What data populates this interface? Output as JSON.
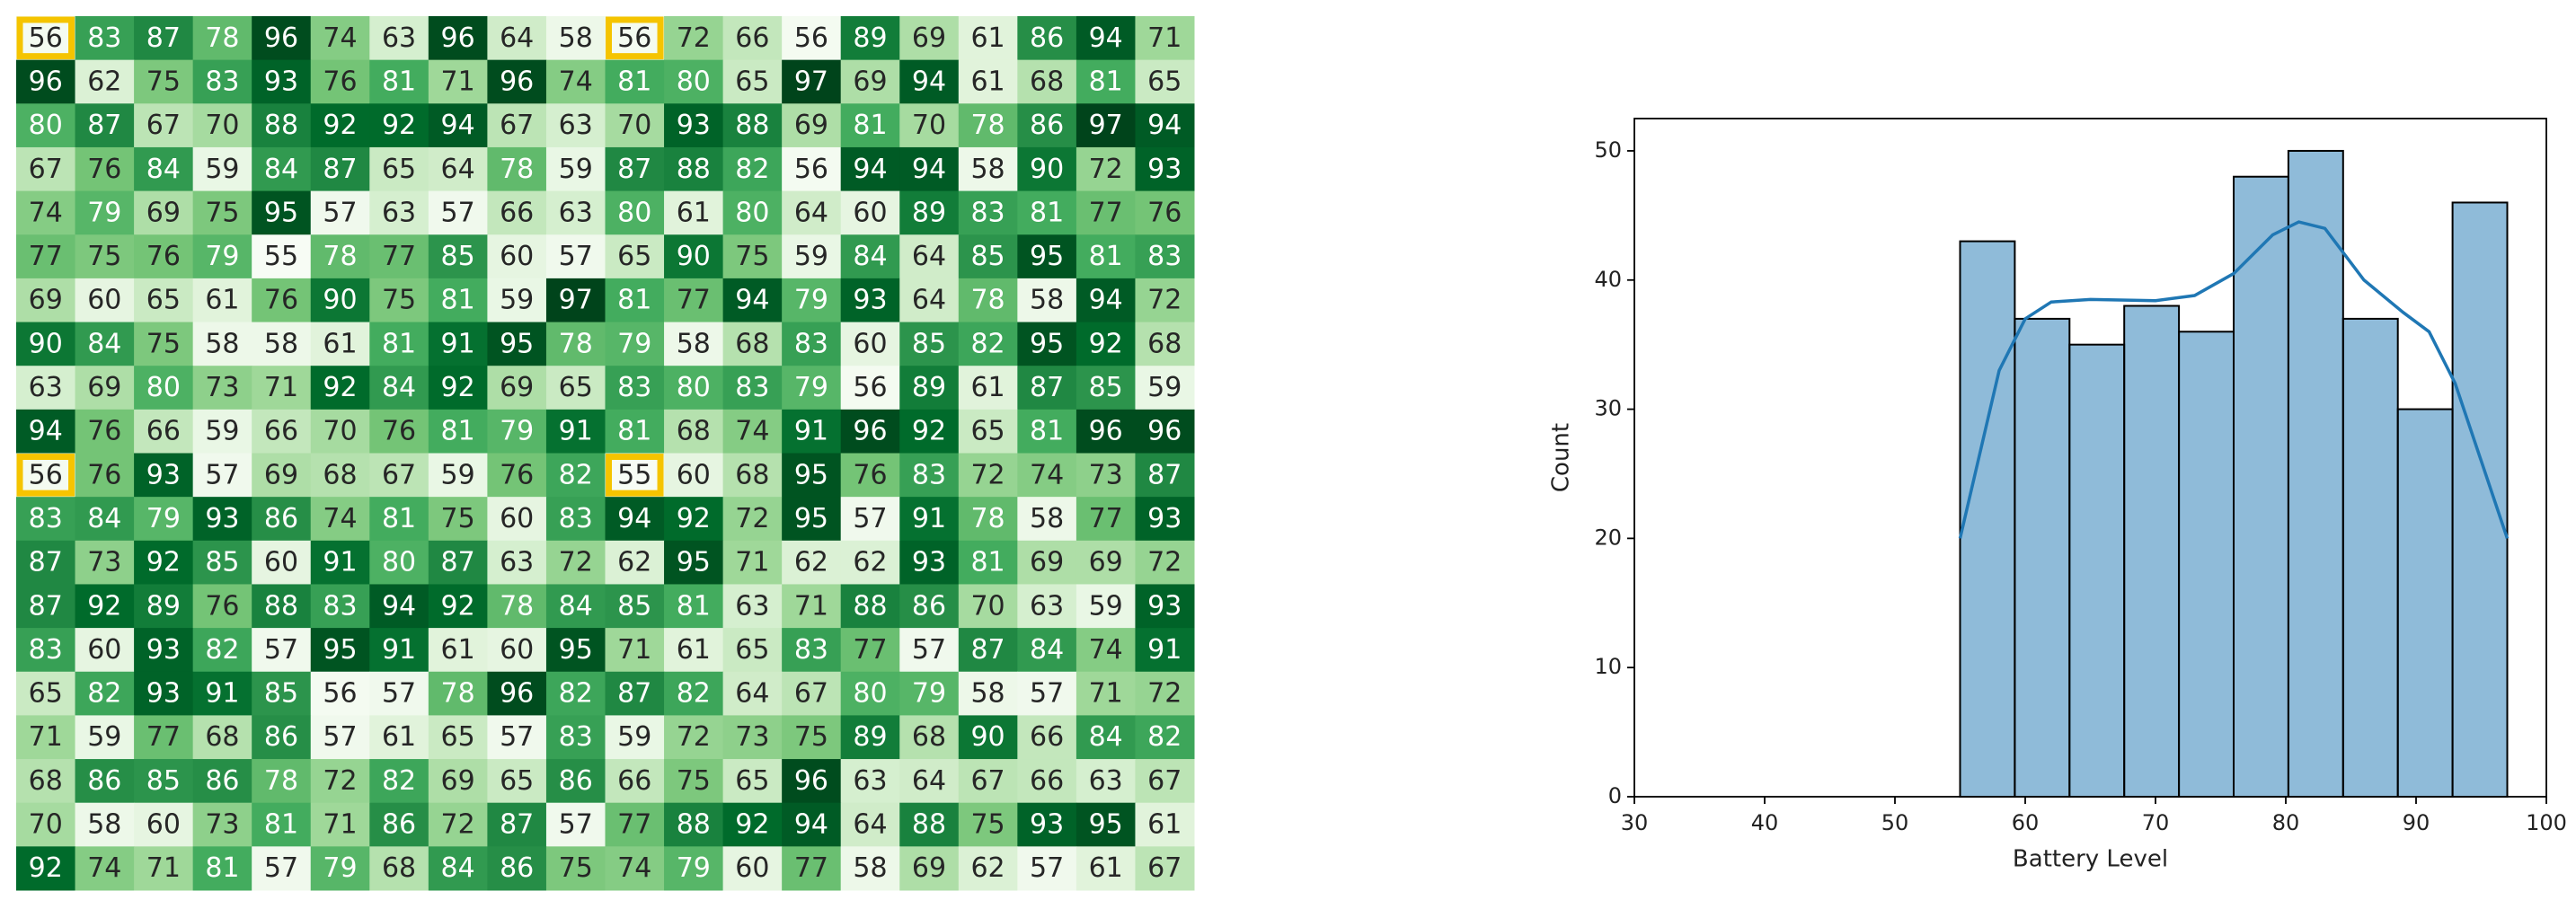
{
  "chart_data": [
    {
      "type": "heatmap",
      "colormap": "Greens",
      "highlight_color": "#f5c400",
      "highlights": [
        [
          0,
          0
        ],
        [
          0,
          10
        ],
        [
          10,
          0
        ],
        [
          10,
          10
        ]
      ],
      "values": [
        [
          56,
          83,
          87,
          78,
          96,
          74,
          63,
          96,
          64,
          58,
          56,
          72,
          66,
          56,
          89,
          69,
          61,
          86,
          94,
          71
        ],
        [
          96,
          62,
          75,
          83,
          93,
          76,
          81,
          71,
          96,
          74,
          81,
          80,
          65,
          97,
          69,
          94,
          61,
          68,
          81,
          65
        ],
        [
          80,
          87,
          67,
          70,
          88,
          92,
          92,
          94,
          67,
          63,
          70,
          93,
          88,
          69,
          81,
          70,
          78,
          86,
          97,
          94
        ],
        [
          67,
          76,
          84,
          59,
          84,
          87,
          65,
          64,
          78,
          59,
          87,
          88,
          82,
          56,
          94,
          94,
          58,
          90,
          72,
          93
        ],
        [
          74,
          79,
          69,
          75,
          95,
          57,
          63,
          57,
          66,
          63,
          80,
          61,
          80,
          64,
          60,
          89,
          83,
          81,
          77,
          76
        ],
        [
          77,
          75,
          76,
          79,
          55,
          78,
          77,
          85,
          60,
          57,
          65,
          90,
          75,
          59,
          84,
          64,
          85,
          95,
          81,
          83
        ],
        [
          69,
          60,
          65,
          61,
          76,
          90,
          75,
          81,
          59,
          97,
          81,
          77,
          94,
          79,
          93,
          64,
          78,
          58,
          94,
          72
        ],
        [
          90,
          84,
          75,
          58,
          58,
          61,
          81,
          91,
          95,
          78,
          79,
          58,
          68,
          83,
          60,
          85,
          82,
          95,
          92,
          68
        ],
        [
          63,
          69,
          80,
          73,
          71,
          92,
          84,
          92,
          69,
          65,
          83,
          80,
          83,
          79,
          56,
          89,
          61,
          87,
          85,
          59
        ],
        [
          94,
          76,
          66,
          59,
          66,
          70,
          76,
          81,
          79,
          91,
          81,
          68,
          74,
          91,
          96,
          92,
          65,
          81,
          96,
          96
        ],
        [
          56,
          76,
          93,
          57,
          69,
          68,
          67,
          59,
          76,
          82,
          55,
          60,
          68,
          95,
          76,
          83,
          72,
          74,
          73,
          87
        ],
        [
          83,
          84,
          79,
          93,
          86,
          74,
          81,
          75,
          60,
          83,
          94,
          92,
          72,
          95,
          57,
          91,
          78,
          58,
          77,
          93
        ],
        [
          87,
          73,
          92,
          85,
          60,
          91,
          80,
          87,
          63,
          72,
          62,
          95,
          71,
          62,
          62,
          93,
          81,
          69,
          69,
          72
        ],
        [
          87,
          92,
          89,
          76,
          88,
          83,
          94,
          92,
          78,
          84,
          85,
          81,
          63,
          71,
          88,
          86,
          70,
          63,
          59,
          93
        ],
        [
          83,
          60,
          93,
          82,
          57,
          95,
          91,
          61,
          60,
          95,
          71,
          61,
          65,
          83,
          77,
          57,
          87,
          84,
          74,
          91
        ],
        [
          65,
          82,
          93,
          91,
          85,
          56,
          57,
          78,
          96,
          82,
          87,
          82,
          64,
          67,
          80,
          79,
          58,
          57,
          71,
          72
        ],
        [
          71,
          59,
          77,
          68,
          86,
          57,
          61,
          65,
          57,
          83,
          59,
          72,
          73,
          75,
          89,
          68,
          90,
          66,
          84,
          82
        ],
        [
          68,
          86,
          85,
          86,
          78,
          72,
          82,
          69,
          65,
          86,
          66,
          75,
          65,
          96,
          63,
          64,
          67,
          66,
          63,
          67
        ],
        [
          70,
          58,
          60,
          73,
          81,
          71,
          86,
          72,
          87,
          57,
          77,
          88,
          92,
          94,
          64,
          88,
          75,
          93,
          95,
          61
        ],
        [
          92,
          74,
          71,
          81,
          57,
          79,
          68,
          84,
          86,
          75,
          74,
          79,
          60,
          77,
          58,
          69,
          62,
          57,
          61,
          67
        ]
      ]
    },
    {
      "type": "histogram",
      "xlabel": "Battery Level",
      "ylabel": "Count",
      "color": "#1f77b4",
      "bins": [
        55,
        59.2,
        63.4,
        67.6,
        71.8,
        76,
        80.2,
        84.4,
        88.6,
        92.8,
        97
      ],
      "counts": [
        43,
        37,
        35,
        38,
        36,
        48,
        50,
        37,
        30,
        46
      ],
      "xlim": [
        30,
        100
      ],
      "xticks": [
        30,
        40,
        50,
        60,
        70,
        80,
        90,
        100
      ],
      "ylim": [
        0,
        52.5
      ],
      "yticks": [
        0,
        10,
        20,
        30,
        40,
        50
      ],
      "kde": {
        "x": [
          55,
          58,
          60,
          62,
          65,
          70,
          73,
          76,
          79,
          81,
          83,
          86,
          89,
          91,
          93,
          95,
          97
        ],
        "values": [
          20,
          33,
          37,
          38.3,
          38.5,
          38.4,
          38.8,
          40.5,
          43.5,
          44.5,
          44,
          40,
          37.5,
          36,
          32,
          26,
          20
        ]
      }
    }
  ]
}
